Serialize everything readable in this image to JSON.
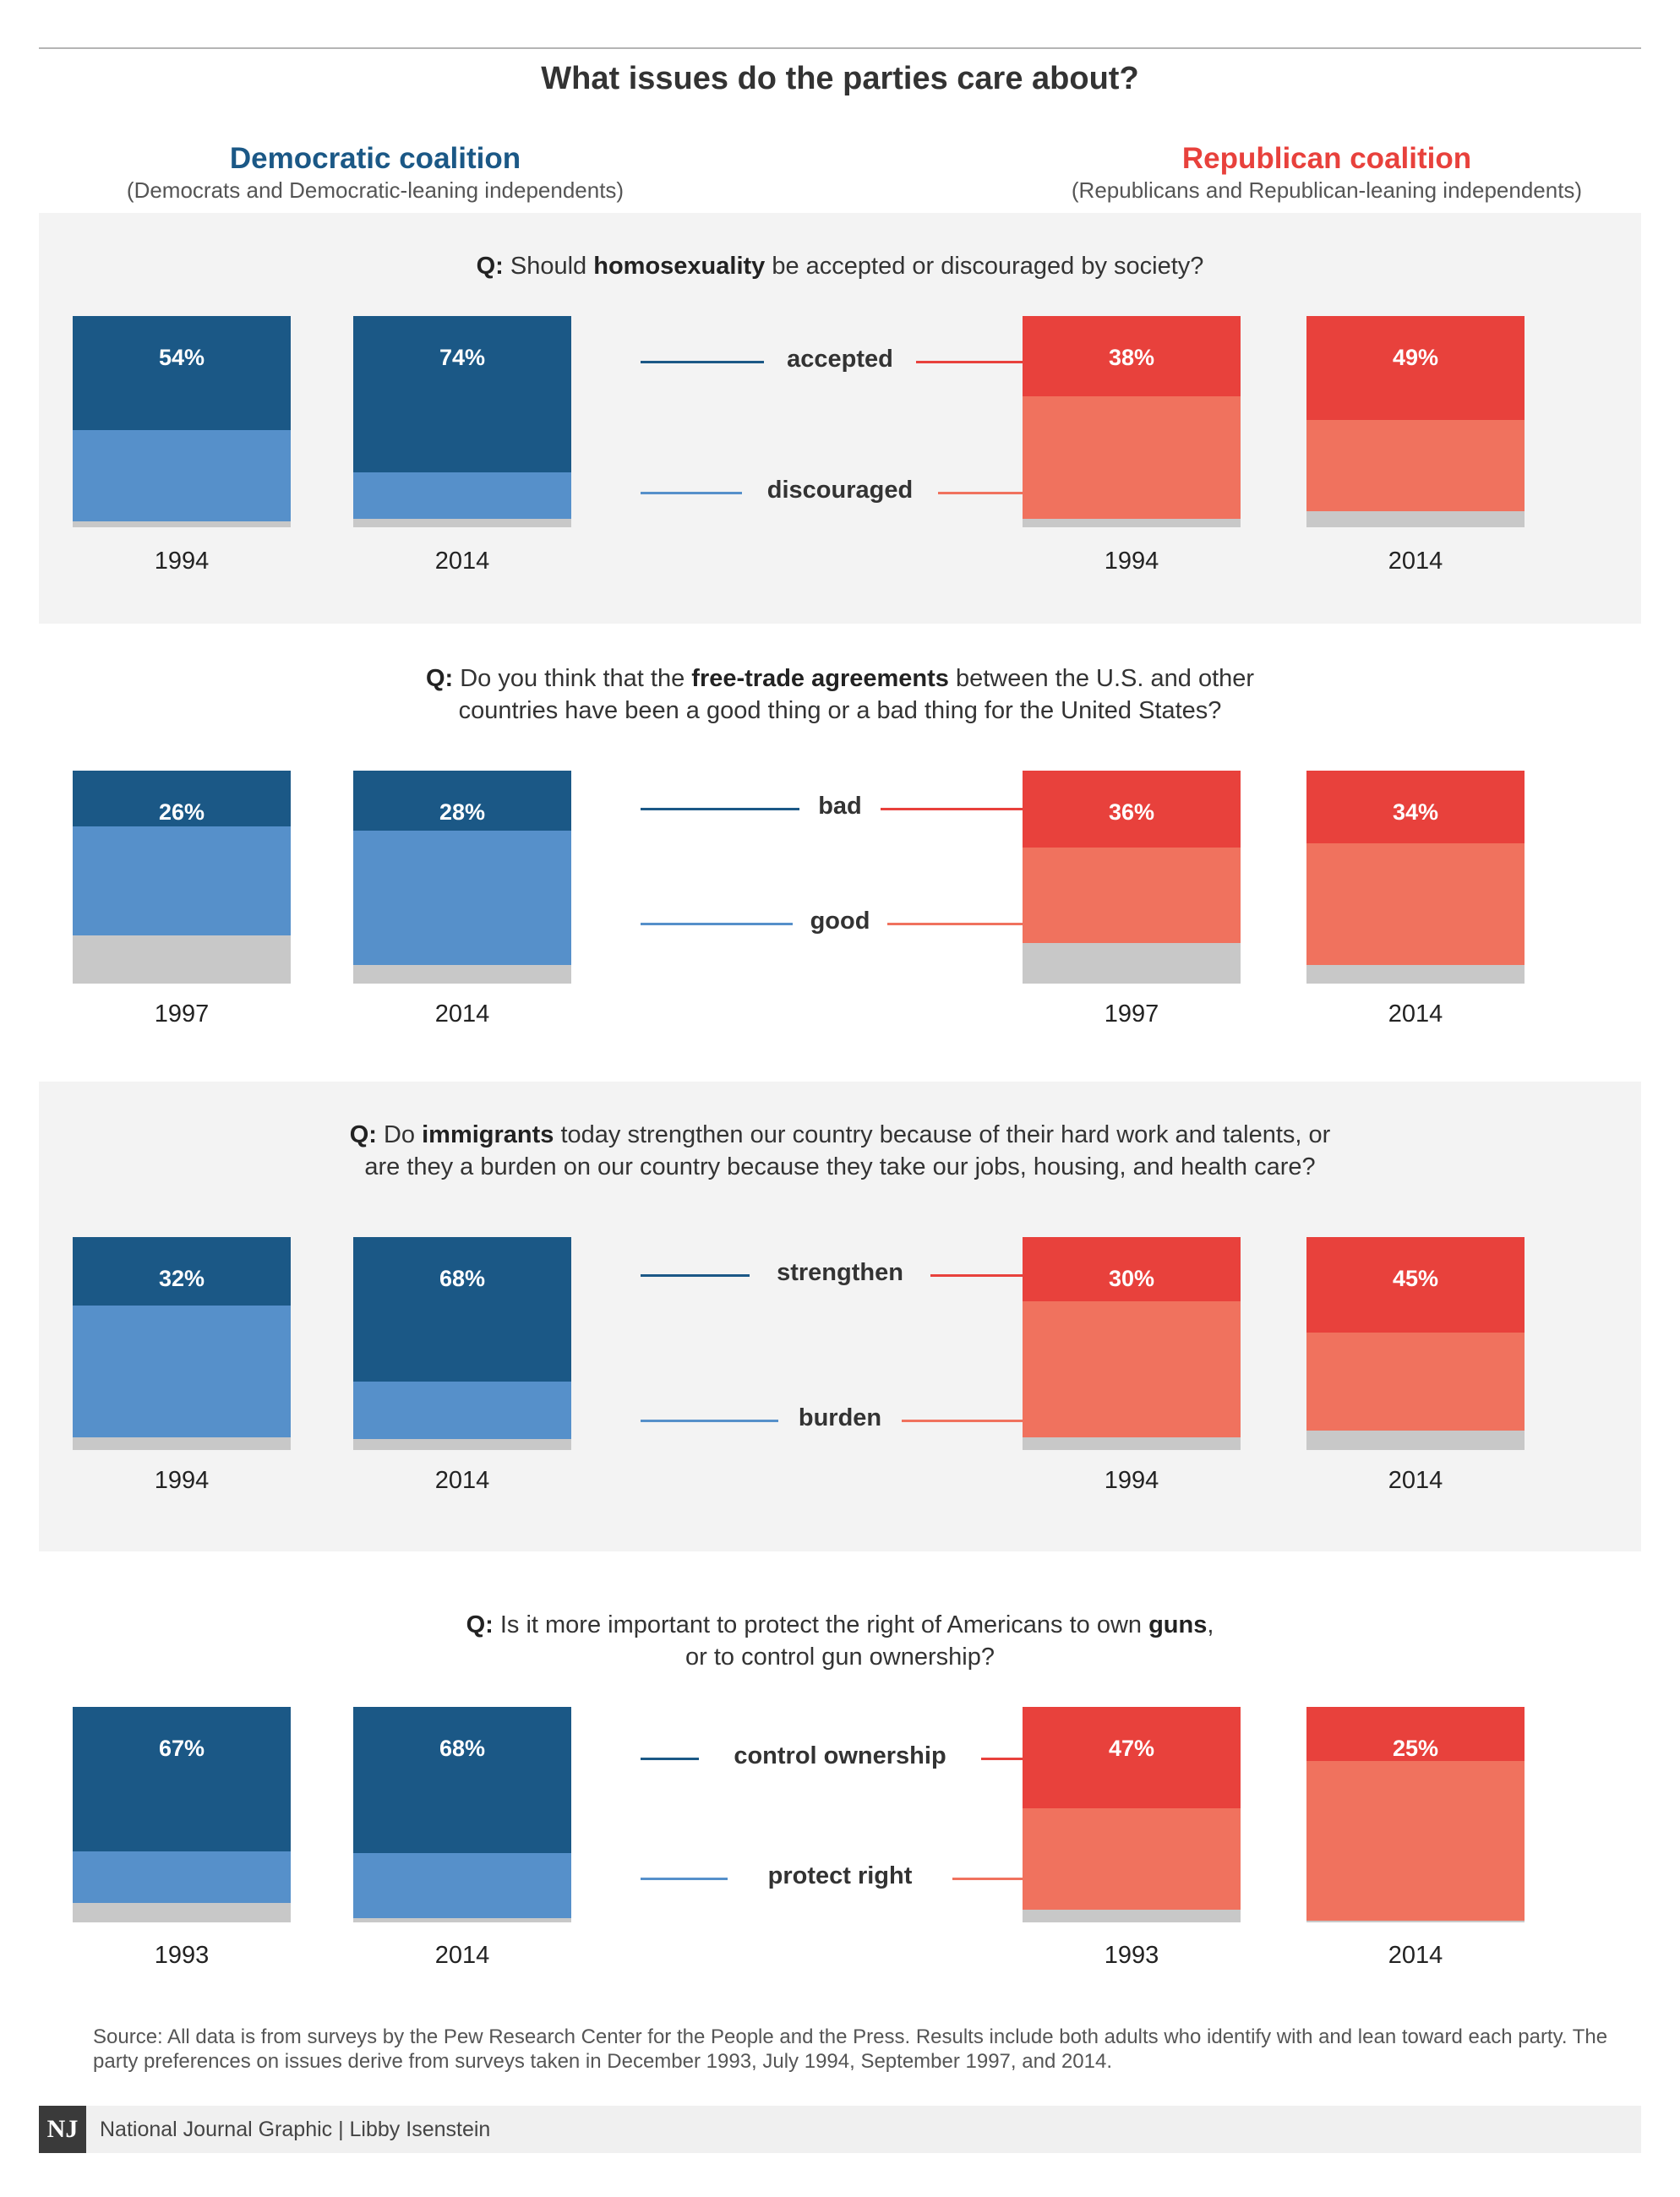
{
  "title": "What issues do the parties care about?",
  "dem": {
    "name": "Democratic coalition",
    "desc": "(Democrats and Democratic-leaning independents)"
  },
  "rep": {
    "name": "Republican coalition",
    "desc": "(Republicans and Republican-leaning independents)"
  },
  "colors": {
    "dem_top": "#1b5886",
    "dem_bottom": "#5690ca",
    "rep_top": "#e8413c",
    "rep_bottom": "#f0725e",
    "other": "#c8c8c8",
    "panel_shade": "#f3f3f3"
  },
  "chart_data": [
    {
      "type": "bar",
      "stacked": true,
      "question_prefix": "Q:",
      "question_parts": [
        {
          "text": "Should ",
          "bold": false
        },
        {
          "text": "homosexuality",
          "bold": true
        },
        {
          "text": " be accepted or discouraged by society?",
          "bold": false
        }
      ],
      "top_label": "accepted",
      "bottom_label": "discouraged",
      "dem": {
        "years": [
          "1994",
          "2014"
        ],
        "top": [
          54,
          74
        ],
        "bottom": [
          43,
          22
        ],
        "pct_labels": [
          "54%",
          "74%"
        ]
      },
      "rep": {
        "years": [
          "1994",
          "2014"
        ],
        "top": [
          38,
          49
        ],
        "bottom": [
          58,
          43
        ],
        "pct_labels": [
          "38%",
          "49%"
        ]
      }
    },
    {
      "type": "bar",
      "stacked": true,
      "question_prefix": "Q:",
      "question_parts": [
        {
          "text": "Do you think that the ",
          "bold": false
        },
        {
          "text": "free-trade agreements",
          "bold": true
        },
        {
          "text": " between the U.S. and other\ncountries have been a good thing or a bad thing for the United States?",
          "bold": false
        }
      ],
      "top_label": "bad",
      "bottom_label": "good",
      "dem": {
        "years": [
          "1997",
          "2014"
        ],
        "top": [
          26,
          28
        ],
        "bottom": [
          51,
          63
        ],
        "pct_labels": [
          "26%",
          "28%"
        ]
      },
      "rep": {
        "years": [
          "1997",
          "2014"
        ],
        "top": [
          36,
          34
        ],
        "bottom": [
          45,
          57
        ],
        "pct_labels": [
          "36%",
          "34%"
        ]
      }
    },
    {
      "type": "bar",
      "stacked": true,
      "question_prefix": "Q:",
      "question_parts": [
        {
          "text": "Do ",
          "bold": false
        },
        {
          "text": "immigrants",
          "bold": true
        },
        {
          "text": " today strengthen our country because of their hard work and talents, or\nare they a burden on our country because they take our jobs, housing, and health care?",
          "bold": false
        }
      ],
      "top_label": "strengthen",
      "bottom_label": "burden",
      "dem": {
        "years": [
          "1994",
          "2014"
        ],
        "top": [
          32,
          68
        ],
        "bottom": [
          62,
          27
        ],
        "pct_labels": [
          "32%",
          "68%"
        ]
      },
      "rep": {
        "years": [
          "1994",
          "2014"
        ],
        "top": [
          30,
          45
        ],
        "bottom": [
          64,
          46
        ],
        "pct_labels": [
          "30%",
          "45%"
        ]
      }
    },
    {
      "type": "bar",
      "stacked": true,
      "question_prefix": "Q:",
      "question_parts": [
        {
          "text": "Is it more important to protect the right of Americans to own ",
          "bold": false
        },
        {
          "text": "guns",
          "bold": true
        },
        {
          "text": ",\nor to control gun ownership?",
          "bold": false
        }
      ],
      "top_label": "control ownership",
      "bottom_label": "protect right",
      "dem": {
        "years": [
          "1993",
          "2014"
        ],
        "top": [
          67,
          68
        ],
        "bottom": [
          24,
          30
        ],
        "pct_labels": [
          "67%",
          "68%"
        ]
      },
      "rep": {
        "years": [
          "1993",
          "2014"
        ],
        "top": [
          47,
          25
        ],
        "bottom": [
          47,
          74
        ],
        "pct_labels": [
          "47%",
          "25%"
        ]
      }
    }
  ],
  "source": "Source: All data is from surveys by the Pew Research Center for the People and the Press. Results include both adults who identify with and lean toward each party. The party preferences on issues derive from surveys taken in December 1993, July 1994, September 1997, and 2014.",
  "footer": {
    "logo": "NJ",
    "credit": "National Journal Graphic  |  Libby Isenstein"
  }
}
